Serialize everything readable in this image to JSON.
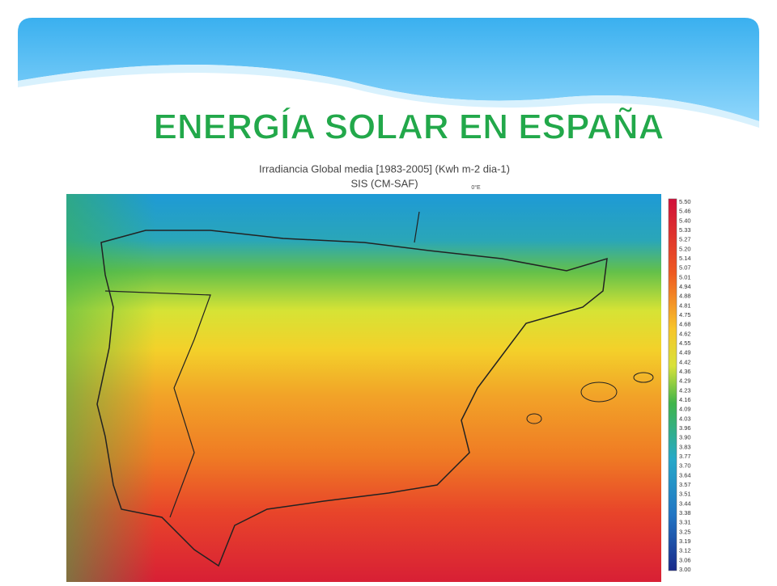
{
  "header": {
    "title": "ENERGÍA SOLAR EN ESPAÑA"
  },
  "map": {
    "title": "Irradiancia Global media [1983-2005] (Kwh m-2 dia-1)",
    "subtitle": "SIS (CM-SAF)",
    "meridian_label": "0°E",
    "legend_labels": [
      "5.50",
      "5.46",
      "5.40",
      "5.33",
      "5.27",
      "5.20",
      "5.14",
      "5.07",
      "5.01",
      "4.94",
      "4.88",
      "4.81",
      "4.75",
      "4.68",
      "4.62",
      "4.55",
      "4.49",
      "4.42",
      "4.36",
      "4.29",
      "4.23",
      "4.16",
      "4.09",
      "4.03",
      "3.96",
      "3.90",
      "3.83",
      "3.77",
      "3.70",
      "3.64",
      "3.57",
      "3.51",
      "3.44",
      "3.38",
      "3.31",
      "3.25",
      "3.19",
      "3.12",
      "3.06",
      "3.00"
    ]
  }
}
